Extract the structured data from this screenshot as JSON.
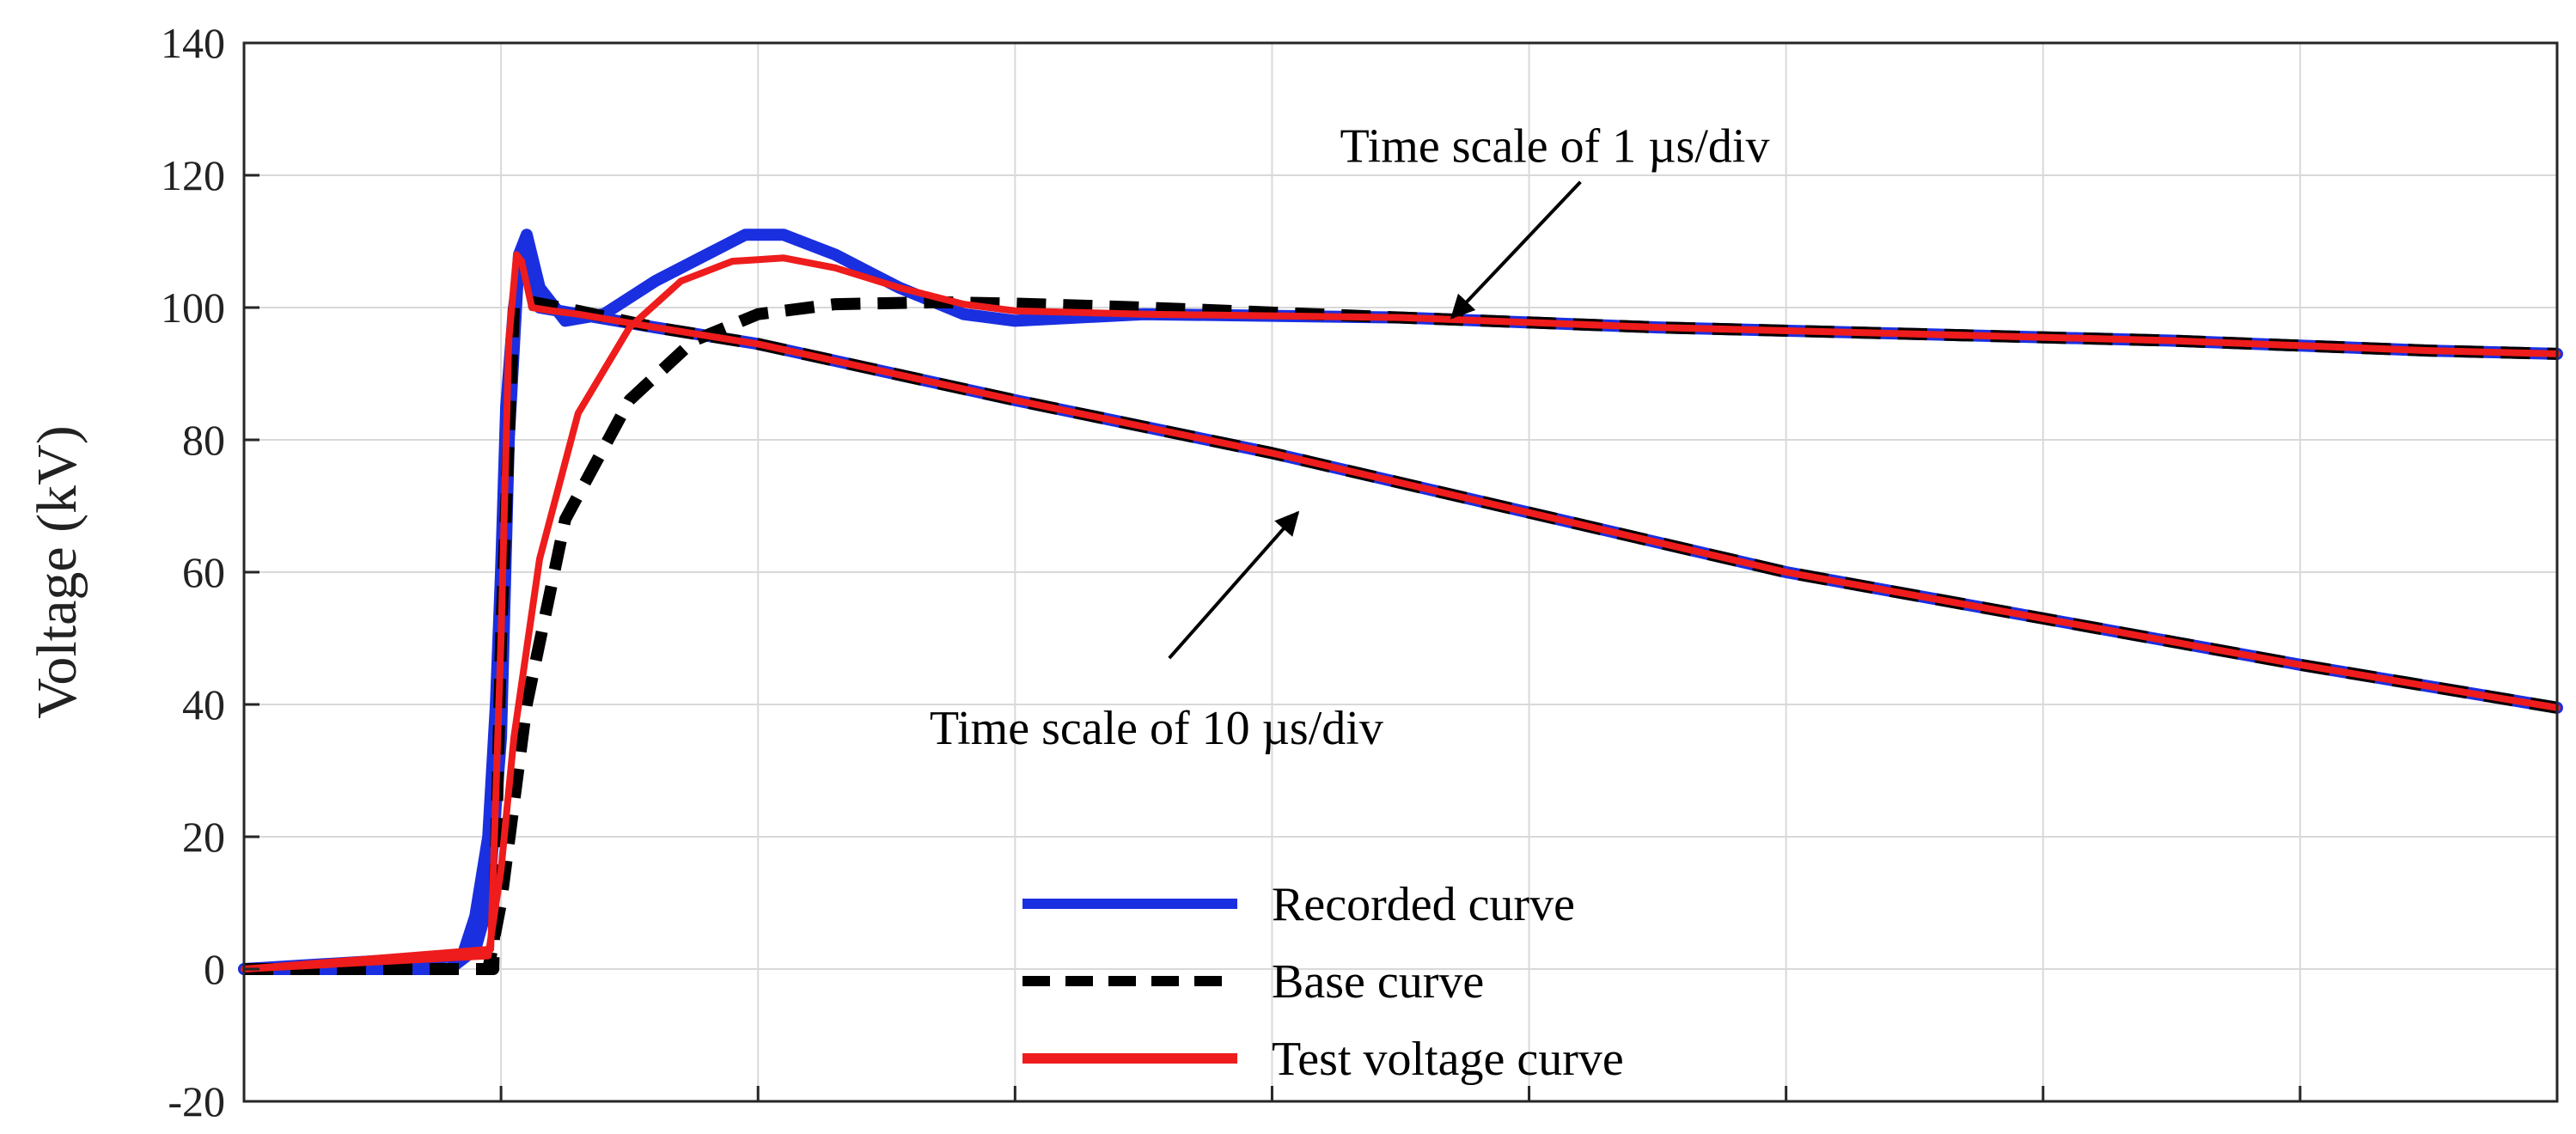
{
  "chart_data": {
    "type": "line",
    "title": "",
    "xlabel": "",
    "ylabel": "Voltage (kV)",
    "ylim": [
      -20,
      140
    ],
    "yticks": [
      -20,
      0,
      20,
      40,
      60,
      80,
      100,
      120,
      140
    ],
    "xlim": [
      0,
      9
    ],
    "x_divisions": 9,
    "grid": true,
    "legend_position": "bottom-center",
    "x_units": "time divisions",
    "colors": {
      "recorded": "#1a2fe0",
      "base": "#000000",
      "test": "#ee1c1c",
      "grid": "#d9d9d9",
      "axis": "#262626"
    },
    "series": [
      {
        "name": "Recorded curve (1 µs/div)",
        "legend_key": "recorded",
        "x": [
          0,
          0.8,
          0.9,
          0.95,
          1.0,
          1.03,
          1.07,
          1.1,
          1.15,
          1.25,
          1.4,
          1.6,
          1.8,
          1.95,
          2.1,
          2.3,
          2.55,
          2.8,
          3.0,
          3.5,
          4.5,
          5.5,
          6.5,
          7.5,
          8.5,
          9.0
        ],
        "y": [
          0,
          0,
          3,
          10,
          35,
          80,
          108,
          111,
          103,
          98,
          99,
          104,
          108,
          111,
          111,
          108,
          103,
          99,
          98,
          99,
          98.5,
          97,
          96,
          95,
          93.5,
          93
        ]
      },
      {
        "name": "Base curve (1 µs/div)",
        "legend_key": "base",
        "x": [
          0,
          0.95,
          1.0,
          1.1,
          1.25,
          1.5,
          1.75,
          2.0,
          2.3,
          2.7,
          3.0,
          3.5,
          4.5,
          5.5,
          6.5,
          7.5,
          8.5,
          9.0
        ],
        "y": [
          0,
          0,
          10,
          40,
          68,
          86,
          95,
          99,
          100.5,
          100.8,
          100.6,
          100,
          98.5,
          97,
          96,
          95,
          93.5,
          93
        ]
      },
      {
        "name": "Test voltage curve (1 µs/div)",
        "legend_key": "test",
        "x": [
          0,
          0.95,
          1.0,
          1.05,
          1.15,
          1.3,
          1.5,
          1.7,
          1.9,
          2.1,
          2.3,
          2.55,
          2.8,
          3.0,
          3.5,
          4.5,
          5.5,
          6.5,
          7.5,
          8.5,
          9.0
        ],
        "y": [
          0,
          2,
          15,
          35,
          62,
          84,
          97,
          104,
          107,
          107.5,
          106,
          103,
          100.5,
          99.5,
          99,
          98.5,
          97,
          96,
          95,
          93.5,
          93
        ]
      },
      {
        "name": "Recorded curve (10 µs/div)",
        "legend_key": "recorded",
        "x": [
          0,
          0.85,
          0.9,
          0.95,
          0.98,
          1.0,
          1.02,
          1.05,
          1.08,
          1.15,
          1.3,
          1.6,
          2.0,
          3.0,
          4.0,
          5.0,
          6.0,
          7.0,
          8.0,
          9.0
        ],
        "y": [
          0,
          2,
          8,
          20,
          40,
          60,
          85,
          100,
          108,
          100,
          99,
          97,
          94.5,
          86,
          78,
          69,
          60,
          53,
          46,
          39.5
        ]
      },
      {
        "name": "Base curve (10 µs/div)",
        "legend_key": "base",
        "x": [
          0,
          0.97,
          1.0,
          1.05,
          1.1,
          1.3,
          1.6,
          2.0,
          3.0,
          4.0,
          5.0,
          6.0,
          7.0,
          8.0,
          9.0
        ],
        "y": [
          0,
          0,
          50,
          100,
          101,
          99.5,
          97,
          94.5,
          86,
          78,
          69,
          60,
          53,
          46,
          39.5
        ]
      },
      {
        "name": "Test voltage curve (10 µs/div)",
        "legend_key": "test",
        "x": [
          0,
          0.96,
          1.0,
          1.03,
          1.06,
          1.08,
          1.12,
          1.2,
          1.3,
          1.6,
          2.0,
          3.0,
          4.0,
          5.0,
          6.0,
          7.0,
          8.0,
          9.0
        ],
        "y": [
          0,
          3,
          50,
          95,
          108,
          107,
          100,
          99.5,
          99,
          97,
          94.5,
          86,
          78,
          69,
          60,
          53,
          46,
          39.5
        ]
      }
    ],
    "annotations": [
      {
        "text": "Time scale of 1 µs/div",
        "text_x": 5.1,
        "text_y": 122,
        "arrow_from": [
          5.2,
          119
        ],
        "arrow_to": [
          4.7,
          98.5
        ]
      },
      {
        "text": "Time scale of 10 µs/div",
        "text_x": 3.55,
        "text_y": 34,
        "arrow_from": [
          3.6,
          47
        ],
        "arrow_to": [
          4.1,
          69
        ]
      }
    ],
    "legend": [
      {
        "label": "Recorded curve",
        "key": "recorded",
        "style": "solid"
      },
      {
        "label": "Base curve",
        "key": "base",
        "style": "dashed"
      },
      {
        "label": "Test voltage curve",
        "key": "test",
        "style": "solid"
      }
    ]
  }
}
